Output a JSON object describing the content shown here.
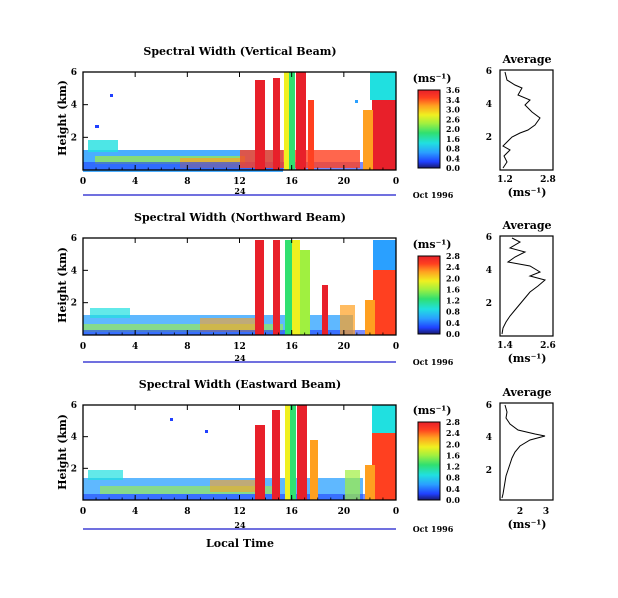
{
  "chart_data": [
    {
      "type": "heatmap",
      "title": "Spectral Width (Vertical Beam)",
      "ylabel": "Height (km)",
      "xticks": [
        "0",
        "4",
        "8",
        "12",
        "16",
        "20",
        "0"
      ],
      "date_marker": "24",
      "date_label": "Oct 1996",
      "ylim": [
        0,
        6
      ],
      "yticks": [
        "2",
        "4",
        "6"
      ],
      "colorbar": {
        "unit": "(ms⁻¹)",
        "ticks": [
          "3.6",
          "3.4",
          "3.0",
          "2.6",
          "2.0",
          "1.6",
          "0.8",
          "0.4",
          "0.0"
        ]
      },
      "average_profile": {
        "title": "Average",
        "xticks": [
          "1.2",
          "2.8"
        ],
        "xlabel": "(ms⁻¹)",
        "yticks": [
          "2",
          "4",
          "6"
        ]
      }
    },
    {
      "type": "heatmap",
      "title": "Spectral Width (Northward Beam)",
      "ylabel": "Height (km)",
      "xticks": [
        "0",
        "4",
        "8",
        "12",
        "16",
        "20",
        "0"
      ],
      "date_marker": "24",
      "date_label": "Oct 1996",
      "ylim": [
        0,
        6
      ],
      "yticks": [
        "2",
        "4",
        "6"
      ],
      "colorbar": {
        "unit": "(ms⁻¹)",
        "ticks": [
          "2.8",
          "2.4",
          "2.0",
          "1.6",
          "1.2",
          "0.8",
          "0.4",
          "0.0"
        ]
      },
      "average_profile": {
        "title": "Average",
        "xticks": [
          "1.4",
          "2.6"
        ],
        "xlabel": "(ms⁻¹)",
        "yticks": [
          "2",
          "4",
          "6"
        ]
      }
    },
    {
      "type": "heatmap",
      "title": "Spectral Width (Eastward Beam)",
      "ylabel": "Height (km)",
      "xticks": [
        "0",
        "4",
        "8",
        "12",
        "16",
        "20",
        "0"
      ],
      "date_marker": "24",
      "date_label": "Oct 1996",
      "xlabel": "Local Time",
      "ylim": [
        0,
        6
      ],
      "yticks": [
        "2",
        "4",
        "6"
      ],
      "colorbar": {
        "unit": "(ms⁻¹)",
        "ticks": [
          "2.8",
          "2.4",
          "2.0",
          "1.6",
          "1.2",
          "0.8",
          "0.4",
          "0.0"
        ]
      },
      "average_profile": {
        "title": "Average",
        "xticks": [
          "2",
          "3"
        ],
        "xlabel": "(ms⁻¹)",
        "yticks": [
          "2",
          "4",
          "6"
        ]
      }
    }
  ],
  "colors": {
    "colormap": [
      "#1a1a6e",
      "#2040ff",
      "#2aa0ff",
      "#20e0e0",
      "#30e070",
      "#a0f040",
      "#f0f020",
      "#ffa020",
      "#ff4020",
      "#e8202a"
    ],
    "date_bar": "#1a1acc",
    "profile_line": "#000000"
  }
}
